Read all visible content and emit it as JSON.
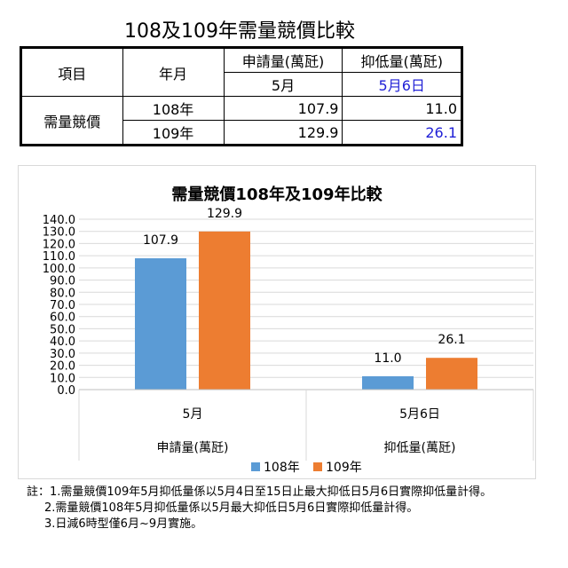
{
  "title": "108及109年需量競價比較",
  "table": {
    "header_item": "項目",
    "header_month": "年月",
    "header_apply": "申請量(萬瓩)",
    "header_reduce": "抑低量(萬瓩)",
    "sub_apply": "5月",
    "sub_reduce": "5月6日",
    "row_label": "需量競價",
    "rows": [
      {
        "year": "108年",
        "apply": "107.9",
        "reduce": "11.0"
      },
      {
        "year": "109年",
        "apply": "129.9",
        "reduce": "26.1"
      }
    ]
  },
  "chart_data": {
    "type": "bar",
    "title": "需量競價108年及109年比較",
    "categories": [
      "5月",
      "5月6日"
    ],
    "category_groups": [
      "申請量(萬瓩)",
      "抑低量(萬瓩)"
    ],
    "series": [
      {
        "name": "108年",
        "values": [
          107.9,
          11.0
        ],
        "color": "#5b9bd5"
      },
      {
        "name": "109年",
        "values": [
          129.9,
          26.1
        ],
        "color": "#ed7d31"
      }
    ],
    "ylim": [
      0,
      140
    ],
    "ytick_step": 10,
    "grid": true,
    "legend": "bottom"
  },
  "notes": [
    "註：1.需量競價109年5月抑低量係以5月4日至15日止最大抑低日5月6日實際抑低量計得。",
    "2.需量競價108年5月抑低量係以5月最大抑低日5月6日實際抑低量計得。",
    "3.日減6時型僅6月~9月實施。"
  ]
}
